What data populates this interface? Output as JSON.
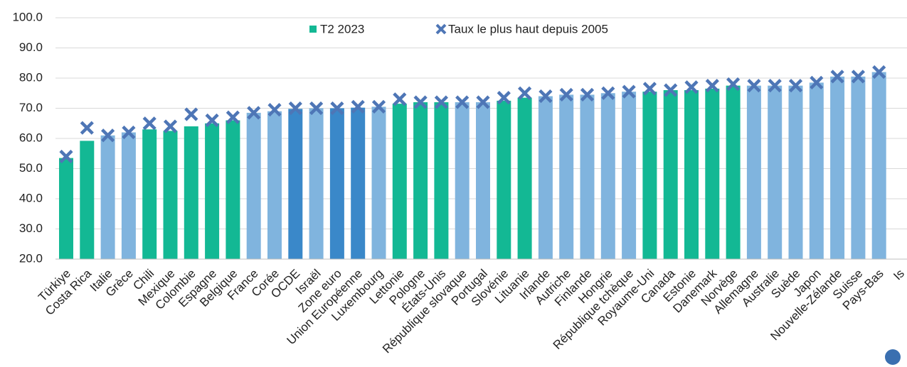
{
  "chart_data": {
    "type": "bar",
    "categories": [
      "Türkiye",
      "Costa Rica",
      "Italie",
      "Grèce",
      "Chili",
      "Mexique",
      "Colombie",
      "Espagne",
      "Belgique",
      "France",
      "Corée",
      "OCDE",
      "Israël",
      "Zone euro",
      "Union Européenne",
      "Luxembourg",
      "Lettonie",
      "Pologne",
      "États-Unis",
      "République slovaque",
      "Portugal",
      "Slovénie",
      "Lituanie",
      "Irlande",
      "Autriche",
      "Finlande",
      "Hongrie",
      "République tchèque",
      "Royaume-Uni",
      "Canada",
      "Estonie",
      "Danemark",
      "Norvège",
      "Allemagne",
      "Australie",
      "Suède",
      "Japon",
      "Nouvelle-Zélande",
      "Suisse",
      "Pays-Bas",
      "Is"
    ],
    "series": [
      {
        "name": "T2 2023",
        "color": "#13b894",
        "colors": [
          "#13b894",
          "#13b894",
          "#80b4de",
          "#80b4de",
          "#13b894",
          "#13b894",
          "#13b894",
          "#13b894",
          "#13b894",
          "#80b4de",
          "#80b4de",
          "#3a88c9",
          "#80b4de",
          "#3a88c9",
          "#3a88c9",
          "#80b4de",
          "#13b894",
          "#13b894",
          "#13b894",
          "#80b4de",
          "#80b4de",
          "#13b894",
          "#13b894",
          "#80b4de",
          "#80b4de",
          "#80b4de",
          "#80b4de",
          "#80b4de",
          "#13b894",
          "#13b894",
          "#13b894",
          "#13b894",
          "#13b894",
          "#80b4de",
          "#80b4de",
          "#80b4de",
          "#80b4de",
          "#80b4de",
          "#80b4de",
          "#80b4de",
          "#80b4de"
        ],
        "values": [
          53.5,
          59.2,
          61,
          62,
          63,
          62.5,
          64,
          65,
          66,
          68.5,
          69,
          69.8,
          70,
          70,
          70.2,
          70.5,
          71.5,
          72,
          72,
          72,
          72,
          72.5,
          73.5,
          74,
          74.5,
          74.5,
          75,
          75.5,
          75.5,
          76,
          76,
          76.5,
          77.5,
          77.5,
          77.5,
          77.5,
          78.5,
          80.5,
          80.5,
          82,
          null
        ]
      },
      {
        "name": "Taux le plus haut depuis 2005",
        "color": "#4e76b6",
        "marker": "x",
        "values": [
          54,
          63.5,
          61,
          62,
          65,
          64,
          68,
          66,
          67,
          68.5,
          69.5,
          70,
          70,
          70,
          70.5,
          70.5,
          73,
          72,
          72,
          72,
          72,
          73.5,
          75,
          74,
          74.5,
          74.5,
          75,
          75.5,
          76.5,
          76,
          77,
          77.5,
          78,
          77.5,
          77.5,
          77.5,
          78.5,
          80.5,
          80.5,
          82,
          null
        ]
      }
    ],
    "ylim": [
      20,
      100
    ],
    "yticks": [
      {
        "value": 20,
        "label": "20.0"
      },
      {
        "value": 30,
        "label": "30.0"
      },
      {
        "value": 40,
        "label": "40.0"
      },
      {
        "value": 50,
        "label": "50.0"
      },
      {
        "value": 60,
        "label": "60.0"
      },
      {
        "value": 70,
        "label": "70.0"
      },
      {
        "value": 80,
        "label": "80.0"
      },
      {
        "value": 90,
        "label": "90.0"
      },
      {
        "value": 100,
        "label": "100.0"
      }
    ],
    "grid": true
  }
}
